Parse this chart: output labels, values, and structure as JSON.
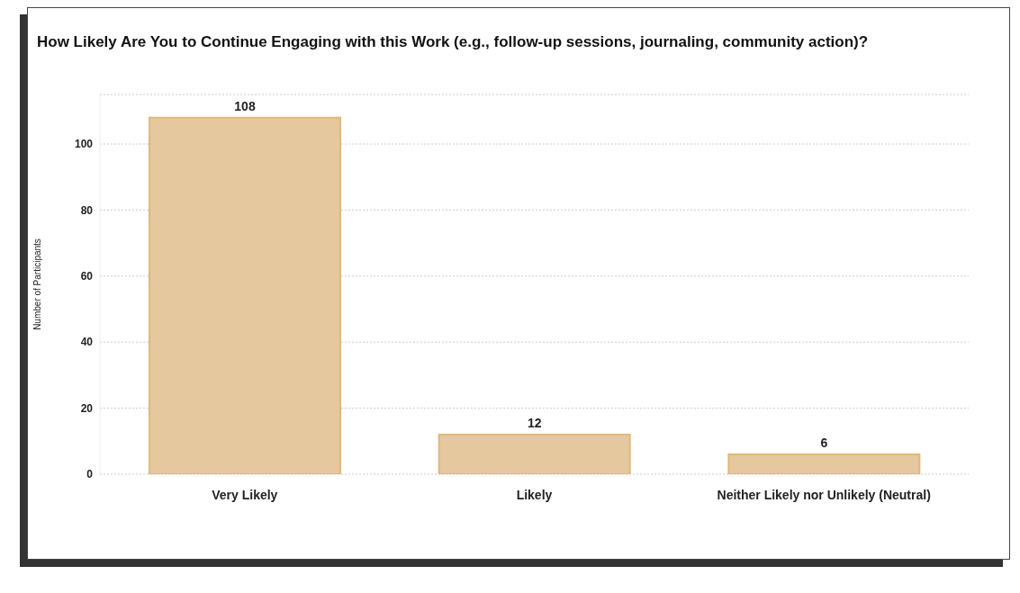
{
  "chart_data": {
    "type": "bar",
    "title": "How Likely Are You to Continue Engaging with this Work (e.g., follow-up sessions, journaling, community action)?",
    "ylabel": "Number of Participants",
    "categories": [
      "Very Likely",
      "Likely",
      "Neither Likely nor Unlikely (Neutral)"
    ],
    "values": [
      108,
      12,
      6
    ],
    "color": "#e6c89e",
    "ylim": [
      0,
      115
    ],
    "yticks": [
      0,
      20,
      40,
      60,
      80,
      100
    ],
    "grid": "y",
    "data_labels": true
  }
}
